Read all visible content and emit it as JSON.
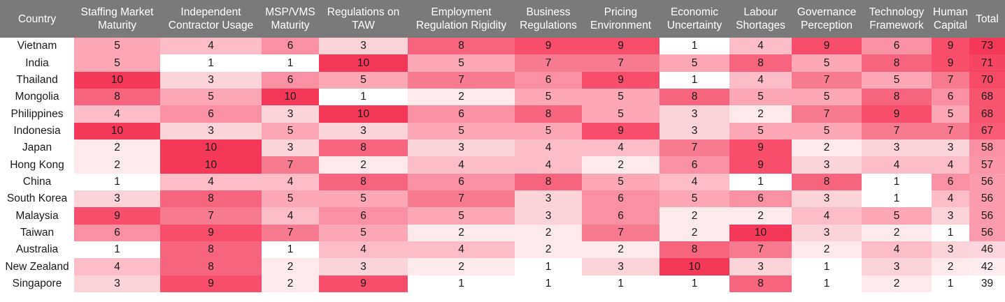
{
  "chart_data": {
    "type": "heatmap",
    "columns": [
      {
        "key": "country",
        "label": "Country"
      },
      {
        "key": "smm",
        "label": "Staffing Market Maturity"
      },
      {
        "key": "icu",
        "label": "Independent Contractor Usage"
      },
      {
        "key": "msp",
        "label": "MSP/VMS Maturity"
      },
      {
        "key": "taw",
        "label": "Regulations on TAW"
      },
      {
        "key": "err",
        "label": "Employment Regulation Rigidity"
      },
      {
        "key": "bus",
        "label": "Business Regulations"
      },
      {
        "key": "pri",
        "label": "Pricing Environment"
      },
      {
        "key": "eco",
        "label": "Economic Uncertainty"
      },
      {
        "key": "lab",
        "label": "Labour Shortages"
      },
      {
        "key": "gov",
        "label": "Governance Perception"
      },
      {
        "key": "tec",
        "label": "Technology Framework"
      },
      {
        "key": "hum",
        "label": "Human Capital"
      },
      {
        "key": "total",
        "label": "Total"
      }
    ],
    "rows": [
      {
        "country": "Vietnam",
        "values": [
          5,
          4,
          6,
          3,
          8,
          9,
          9,
          1,
          4,
          9,
          6,
          9
        ],
        "total": 73
      },
      {
        "country": "India",
        "values": [
          5,
          1,
          1,
          10,
          5,
          7,
          7,
          5,
          8,
          5,
          8,
          9
        ],
        "total": 71
      },
      {
        "country": "Thailand",
        "values": [
          10,
          3,
          6,
          5,
          7,
          6,
          9,
          1,
          4,
          7,
          5,
          7
        ],
        "total": 70
      },
      {
        "country": "Mongolia",
        "values": [
          8,
          5,
          10,
          1,
          2,
          5,
          5,
          8,
          5,
          5,
          8,
          6
        ],
        "total": 68
      },
      {
        "country": "Philippines",
        "values": [
          4,
          6,
          3,
          10,
          6,
          8,
          5,
          3,
          2,
          7,
          9,
          5
        ],
        "total": 68
      },
      {
        "country": "Indonesia",
        "values": [
          10,
          3,
          5,
          3,
          5,
          5,
          9,
          3,
          5,
          5,
          7,
          7
        ],
        "total": 67
      },
      {
        "country": "Japan",
        "values": [
          2,
          10,
          3,
          8,
          3,
          4,
          4,
          7,
          9,
          2,
          3,
          3
        ],
        "total": 58
      },
      {
        "country": "Hong Kong",
        "values": [
          2,
          10,
          7,
          2,
          4,
          4,
          2,
          6,
          9,
          3,
          4,
          4
        ],
        "total": 57
      },
      {
        "country": "China",
        "values": [
          1,
          4,
          4,
          8,
          6,
          8,
          5,
          4,
          1,
          8,
          1,
          6
        ],
        "total": 56
      },
      {
        "country": "South Korea",
        "values": [
          3,
          8,
          5,
          5,
          7,
          3,
          6,
          5,
          6,
          3,
          1,
          4
        ],
        "total": 56
      },
      {
        "country": "Malaysia",
        "values": [
          9,
          7,
          4,
          6,
          5,
          3,
          6,
          2,
          2,
          4,
          5,
          3
        ],
        "total": 56
      },
      {
        "country": "Taiwan",
        "values": [
          6,
          9,
          7,
          5,
          2,
          2,
          7,
          2,
          10,
          3,
          2,
          1
        ],
        "total": 56
      },
      {
        "country": "Australia",
        "values": [
          1,
          8,
          1,
          4,
          4,
          2,
          2,
          8,
          7,
          2,
          4,
          3
        ],
        "total": 46
      },
      {
        "country": "New Zealand",
        "values": [
          4,
          8,
          2,
          3,
          2,
          1,
          3,
          10,
          3,
          1,
          3,
          2
        ],
        "total": 42
      },
      {
        "country": "Singapore",
        "values": [
          3,
          9,
          2,
          9,
          1,
          1,
          1,
          1,
          8,
          1,
          2,
          1
        ],
        "total": 39
      }
    ],
    "value_range": [
      1,
      10
    ],
    "total_range": [
      39,
      73
    ],
    "color_low": "#ffffff",
    "color_high": "#f5385a"
  }
}
